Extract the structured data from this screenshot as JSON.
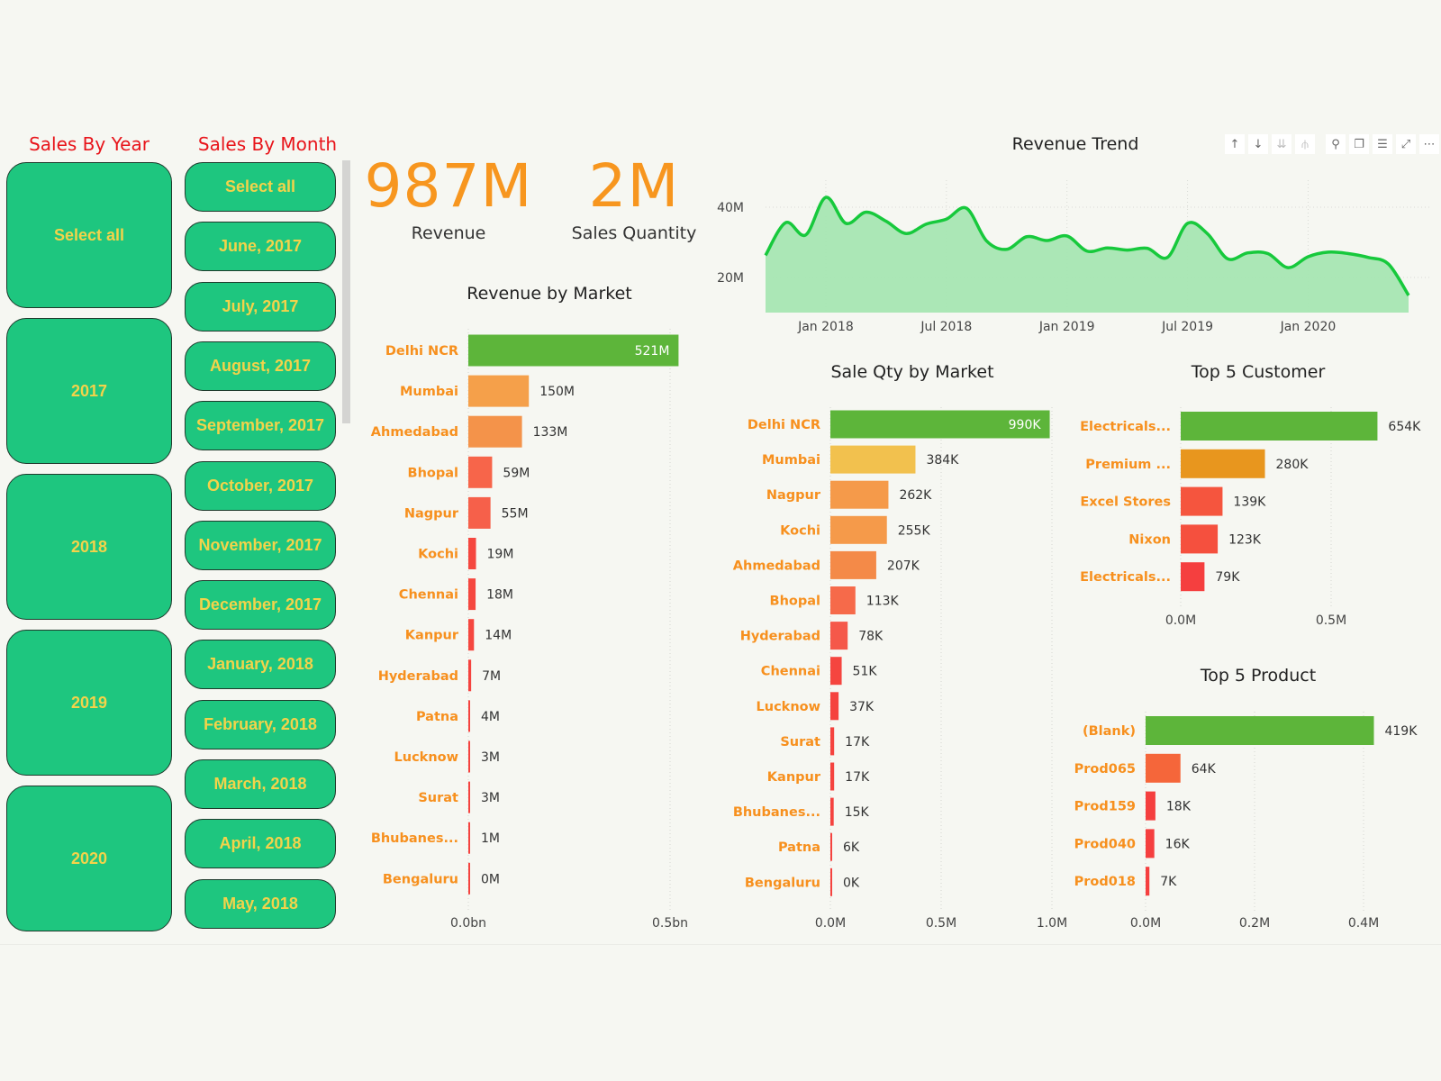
{
  "slicers": {
    "year": {
      "title": "Sales By Year",
      "items": [
        "Select all",
        "2017",
        "2018",
        "2019",
        "2020"
      ]
    },
    "month": {
      "title": "Sales By Month",
      "items": [
        "Select all",
        "June, 2017",
        "July, 2017",
        "August, 2017",
        "September, 2017",
        "October, 2017",
        "November, 2017",
        "December, 2017",
        "January, 2018",
        "February, 2018",
        "March, 2018",
        "April, 2018",
        "May, 2018"
      ]
    }
  },
  "kpis": [
    {
      "value": "987M",
      "label": "Revenue"
    },
    {
      "value": "2M",
      "label": "Sales Quantity"
    }
  ],
  "toolbar": {
    "icons": [
      "arrow-up-icon",
      "arrow-down-icon",
      "double-arrow-down-icon",
      "expand-hierarchy-icon",
      "pin-icon",
      "copy-icon",
      "filter-icon",
      "focus-mode-icon",
      "more-options-icon"
    ]
  },
  "colors": {
    "title_red": "#e8141a",
    "tile_green": "#1ec67f",
    "tile_text": "#f3d34a",
    "kpi_orange": "#f7961f",
    "label_orange": "#f7901e",
    "trend_line": "#17c93c",
    "trend_fill": "#a6e6b2"
  },
  "chart_data": [
    {
      "id": "revenue-trend",
      "type": "area",
      "title": "Revenue Trend",
      "x": [
        "Oct 2017",
        "Nov 2017",
        "Dec 2017",
        "Jan 2018",
        "Feb 2018",
        "Mar 2018",
        "Apr 2018",
        "May 2018",
        "Jun 2018",
        "Jul 2018",
        "Aug 2018",
        "Sep 2018",
        "Oct 2018",
        "Nov 2018",
        "Dec 2018",
        "Jan 2019",
        "Feb 2019",
        "Mar 2019",
        "Apr 2019",
        "May 2019",
        "Jun 2019",
        "Jul 2019",
        "Aug 2019",
        "Sep 2019",
        "Oct 2019",
        "Nov 2019",
        "Dec 2019",
        "Jan 2020",
        "Feb 2020",
        "Mar 2020",
        "Apr 2020",
        "May 2020",
        "Jun 2020"
      ],
      "values": [
        26.3,
        35.6,
        32.1,
        42.8,
        35.4,
        38.6,
        36.0,
        32.5,
        35.2,
        36.6,
        39.7,
        30.4,
        28.0,
        31.6,
        30.5,
        31.8,
        27.5,
        28.4,
        27.8,
        28.3,
        25.7,
        35.4,
        32.4,
        25.3,
        27.0,
        26.8,
        22.8,
        25.9,
        27.2,
        26.8,
        25.7,
        23.8,
        14.9
      ],
      "unit": "M",
      "ylim": [
        10,
        45
      ],
      "yticks": [
        {
          "value": 20,
          "label": "20M"
        },
        {
          "value": 40,
          "label": "40M"
        }
      ],
      "xticks": [
        {
          "x": "Jan 2018",
          "label": "Jan 2018"
        },
        {
          "x": "Jul 2018",
          "label": "Jul 2018"
        },
        {
          "x": "Jan 2019",
          "label": "Jan 2019"
        },
        {
          "x": "Jul 2019",
          "label": "Jul 2019"
        },
        {
          "x": "Jan 2020",
          "label": "Jan 2020"
        }
      ],
      "grid": true
    },
    {
      "id": "revenue-by-market",
      "type": "bar",
      "title": "Revenue by Market",
      "categories": [
        "Delhi NCR",
        "Mumbai",
        "Ahmedabad",
        "Bhopal",
        "Nagpur",
        "Kochi",
        "Chennai",
        "Kanpur",
        "Hyderabad",
        "Patna",
        "Lucknow",
        "Surat",
        "Bhubanes...",
        "Bengaluru"
      ],
      "values": [
        521,
        150,
        133,
        59,
        55,
        19,
        18,
        14,
        7,
        4,
        3,
        3,
        1,
        0.3
      ],
      "unit": "M",
      "data_labels": [
        "521M",
        "150M",
        "133M",
        "59M",
        "55M",
        "19M",
        "18M",
        "14M",
        "7M",
        "4M",
        "3M",
        "3M",
        "1M",
        "0M"
      ],
      "colors": [
        "#5db53a",
        "#f5a04a",
        "#f4934a",
        "#f7654a",
        "#f6604a",
        "#f5473f",
        "#f5473f",
        "#f5473f",
        "#f5433f",
        "#f5433f",
        "#f5433f",
        "#f5433f",
        "#f5433f",
        "#f5433f"
      ],
      "xticks": [
        {
          "value": 0,
          "label": "0.0bn"
        },
        {
          "value": 500,
          "label": "0.5bn"
        }
      ]
    },
    {
      "id": "sale-qty-by-market",
      "type": "bar",
      "title": "Sale Qty by Market",
      "categories": [
        "Delhi NCR",
        "Mumbai",
        "Nagpur",
        "Kochi",
        "Ahmedabad",
        "Bhopal",
        "Hyderabad",
        "Chennai",
        "Lucknow",
        "Surat",
        "Kanpur",
        "Bhubanes...",
        "Patna",
        "Bengaluru"
      ],
      "values": [
        990,
        384,
        262,
        255,
        207,
        113,
        78,
        51,
        37,
        17,
        17,
        15,
        6,
        0.5
      ],
      "unit": "K",
      "data_labels": [
        "990K",
        "384K",
        "262K",
        "255K",
        "207K",
        "113K",
        "78K",
        "51K",
        "37K",
        "17K",
        "17K",
        "15K",
        "6K",
        "0K"
      ],
      "colors": [
        "#5db53a",
        "#f2c14e",
        "#f59a4a",
        "#f59a4a",
        "#f48a48",
        "#f66a4a",
        "#f5584a",
        "#f5453f",
        "#f5433f",
        "#f5433f",
        "#f5433f",
        "#f5433f",
        "#f5433f",
        "#f5433f"
      ],
      "xticks": [
        {
          "value": 0,
          "label": "0.0M"
        },
        {
          "value": 500,
          "label": "0.5M"
        },
        {
          "value": 1000,
          "label": "1.0M"
        }
      ]
    },
    {
      "id": "top-5-customer",
      "type": "bar",
      "title": "Top 5 Customer",
      "categories": [
        "Electricals...",
        "Premium ...",
        "Excel Stores",
        "Nixon",
        "Electricals..."
      ],
      "values": [
        654,
        280,
        139,
        123,
        79
      ],
      "unit": "K",
      "data_labels": [
        "654K",
        "280K",
        "139K",
        "123K",
        "79K"
      ],
      "colors": [
        "#5db53a",
        "#e8961e",
        "#f5553e",
        "#f5503e",
        "#f53f3f"
      ],
      "xticks": [
        {
          "value": 0,
          "label": "0.0M"
        },
        {
          "value": 500,
          "label": "0.5M"
        }
      ]
    },
    {
      "id": "top-5-product",
      "type": "bar",
      "title": "Top 5 Product",
      "categories": [
        "(Blank)",
        "Prod065",
        "Prod159",
        "Prod040",
        "Prod018"
      ],
      "values": [
        419,
        64,
        18,
        16,
        7
      ],
      "unit": "K",
      "data_labels": [
        "419K",
        "64K",
        "18K",
        "16K",
        "7K"
      ],
      "colors": [
        "#5db53a",
        "#f5663a",
        "#f53f3f",
        "#f53f3f",
        "#f53f3f"
      ],
      "xticks": [
        {
          "value": 0,
          "label": "0.0M"
        },
        {
          "value": 200,
          "label": "0.2M"
        },
        {
          "value": 400,
          "label": "0.4M"
        }
      ]
    }
  ]
}
